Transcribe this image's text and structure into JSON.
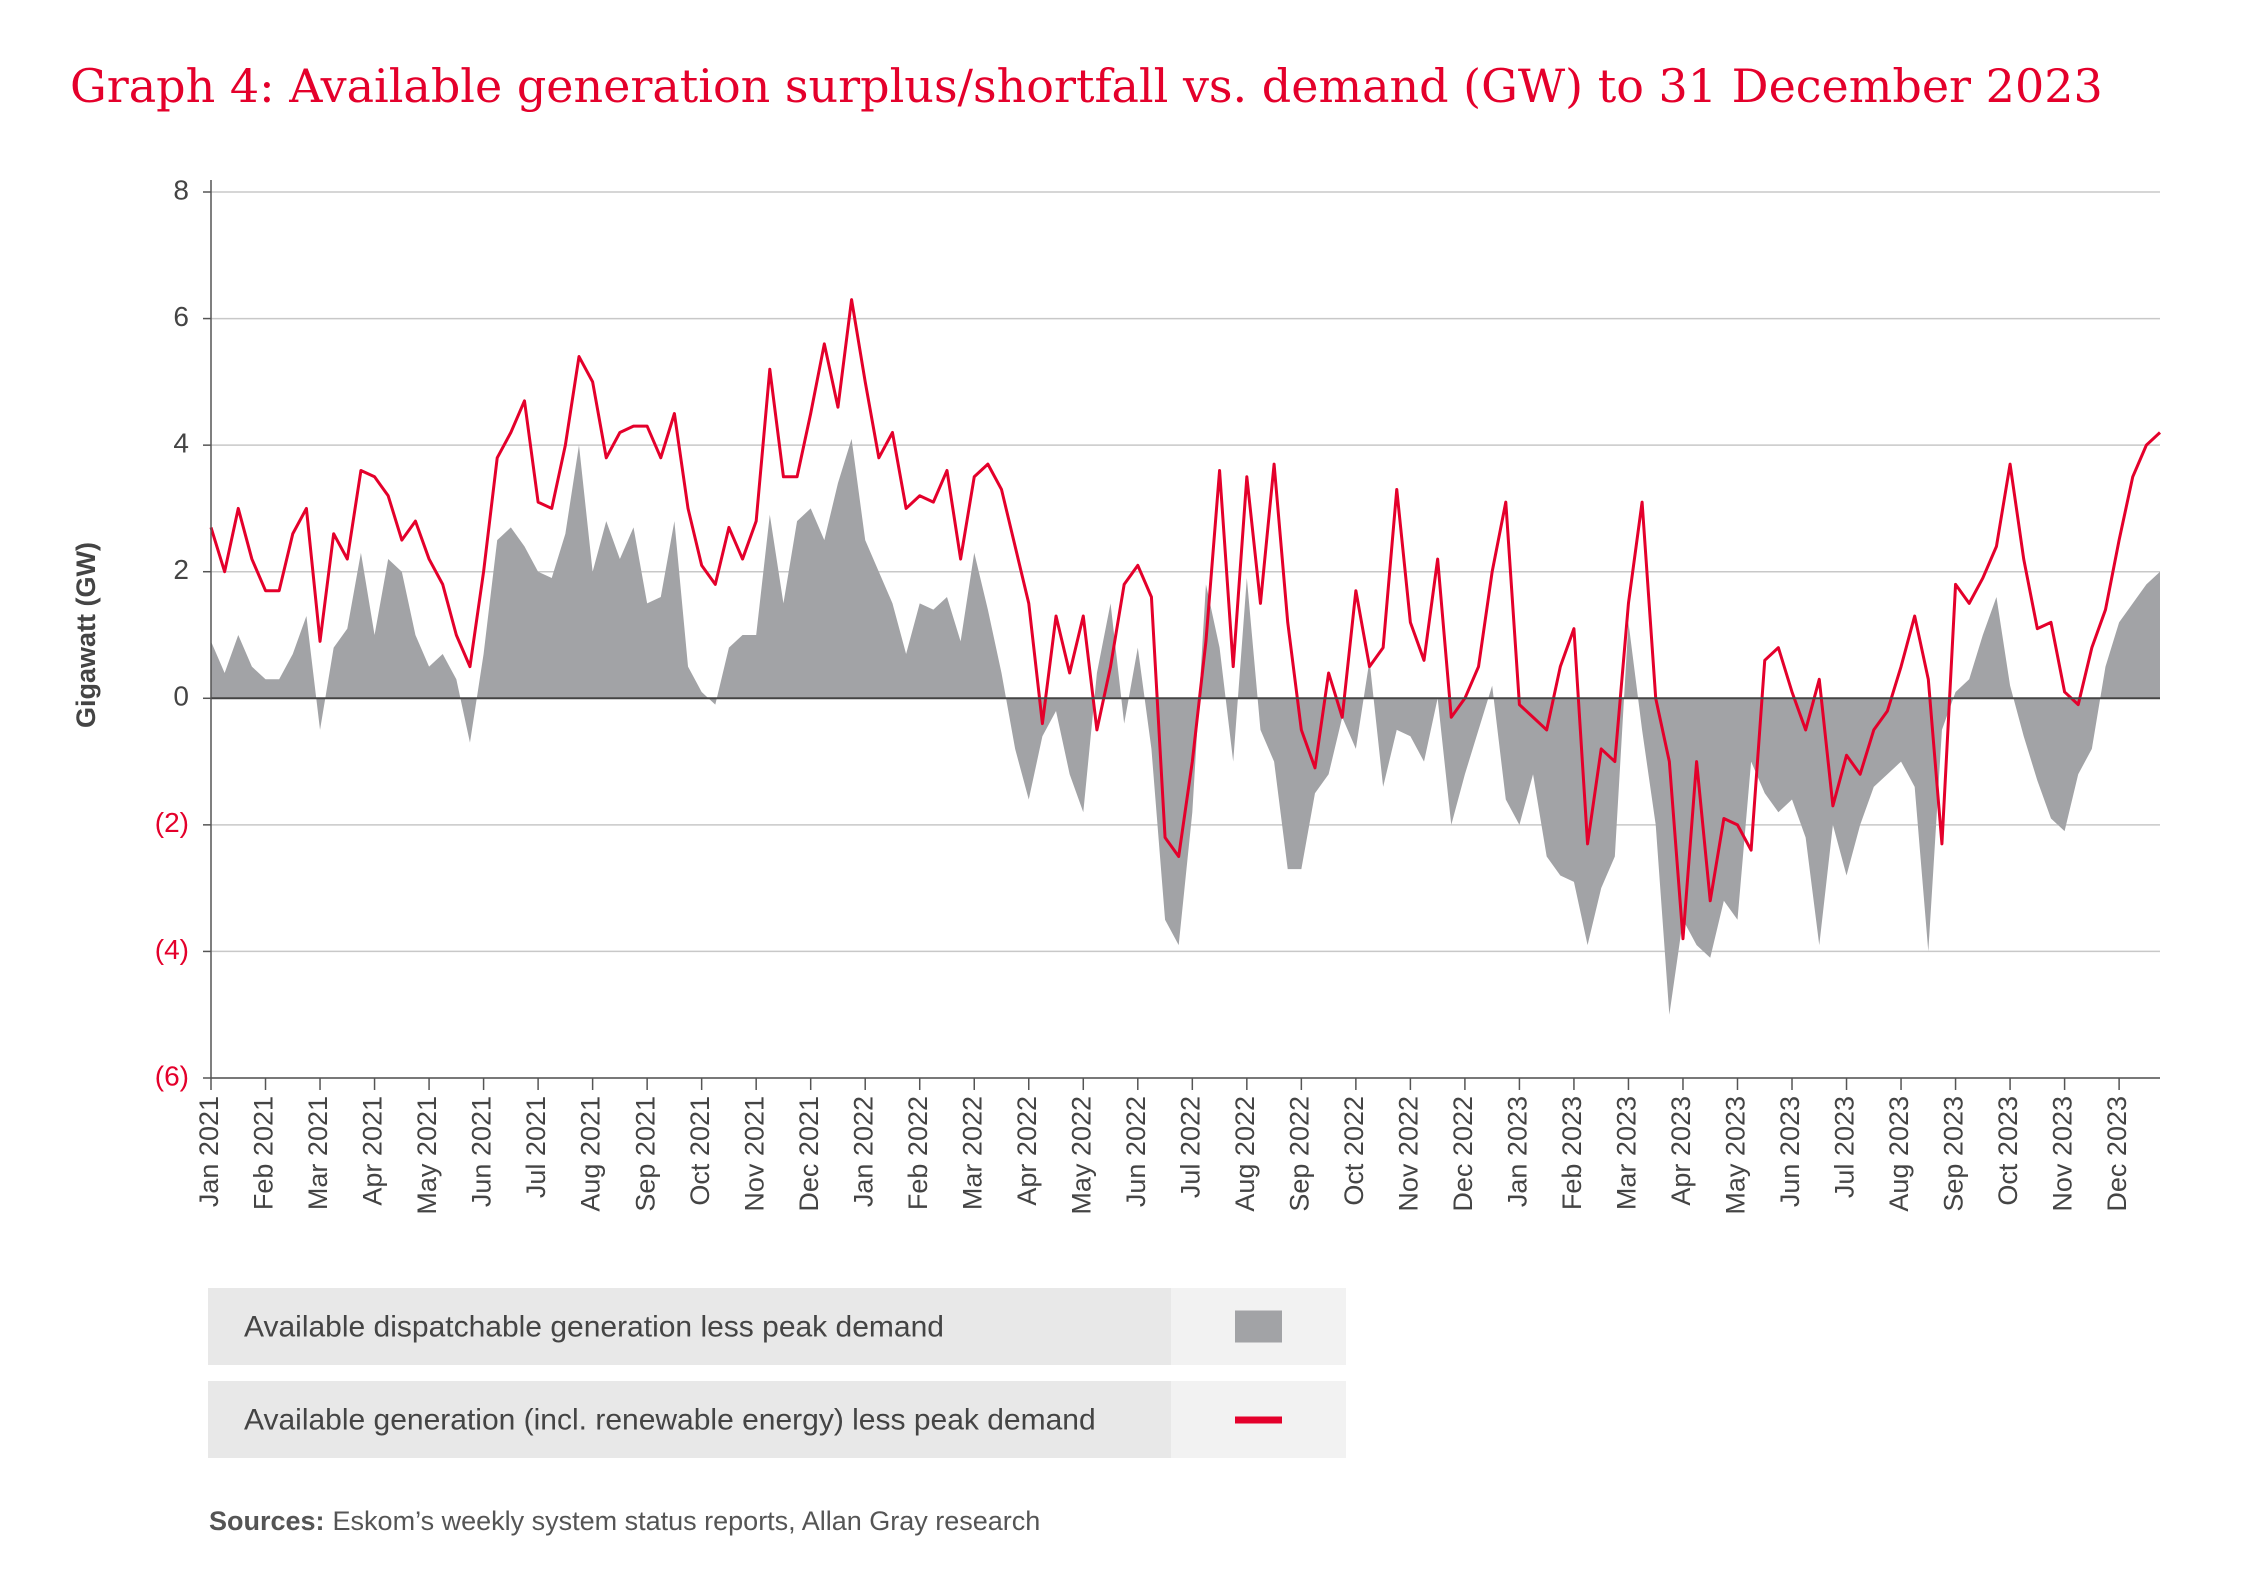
{
  "chart_data": {
    "type": "area-line",
    "title": "Graph 4: Available generation surplus/shortfall vs. demand (GW) to 31 December 2023",
    "y_label": "Gigawatt (GW)",
    "source_label": "Sources:",
    "source": "Eskom’s weekly system status reports, Allan Gray research",
    "ylim": [
      -6,
      8
    ],
    "yticks": [
      {
        "value": -6,
        "label": "(6)"
      },
      {
        "value": -4,
        "label": "(4)"
      },
      {
        "value": -2,
        "label": "(2)"
      },
      0,
      2,
      4,
      6,
      8
    ],
    "grid": true,
    "categories": [
      "Jan 2021",
      null,
      null,
      null,
      "Feb 2021",
      null,
      null,
      null,
      "Mar 2021",
      null,
      null,
      null,
      "Apr 2021",
      null,
      null,
      null,
      "May 2021",
      null,
      null,
      null,
      "Jun 2021",
      null,
      null,
      null,
      "Jul 2021",
      null,
      null,
      null,
      "Aug 2021",
      null,
      null,
      null,
      "Sep 2021",
      null,
      null,
      null,
      "Oct 2021",
      null,
      null,
      null,
      "Nov 2021",
      null,
      null,
      null,
      "Dec 2021",
      null,
      null,
      null,
      "Jan 2022",
      null,
      null,
      null,
      "Feb 2022",
      null,
      null,
      null,
      "Mar 2022",
      null,
      null,
      null,
      "Apr 2022",
      null,
      null,
      null,
      "May 2022",
      null,
      null,
      null,
      "Jun 2022",
      null,
      null,
      null,
      "Jul 2022",
      null,
      null,
      null,
      "Aug 2022",
      null,
      null,
      null,
      "Sep 2022",
      null,
      null,
      null,
      "Oct 2022",
      null,
      null,
      null,
      "Nov 2022",
      null,
      null,
      null,
      "Dec 2022",
      null,
      null,
      null,
      "Jan 2023",
      null,
      null,
      null,
      "Feb 2023",
      null,
      null,
      null,
      "Mar 2023",
      null,
      null,
      null,
      "Apr 2023",
      null,
      null,
      null,
      "May 2023",
      null,
      null,
      null,
      "Jun 2023",
      null,
      null,
      null,
      "Jul 2023",
      null,
      null,
      null,
      "Aug 2023",
      null,
      null,
      null,
      "Sep 2023",
      null,
      null,
      null,
      "Oct 2023",
      null,
      null,
      null,
      "Nov 2023",
      null,
      null,
      null,
      "Dec 2023",
      null,
      null,
      null
    ],
    "series": [
      {
        "name": "Available dispatchable generation less peak demand",
        "color": "#a2a3a6",
        "kind": "area",
        "values": [
          0.9,
          0.4,
          1.0,
          0.5,
          0.3,
          0.3,
          0.7,
          1.3,
          -0.5,
          0.8,
          1.1,
          2.3,
          1.0,
          2.2,
          2.0,
          1.0,
          0.5,
          0.7,
          0.3,
          -0.7,
          0.7,
          2.5,
          2.7,
          2.4,
          2.0,
          1.9,
          2.6,
          4.0,
          2.0,
          2.8,
          2.2,
          2.7,
          1.5,
          1.6,
          2.8,
          0.5,
          0.1,
          -0.1,
          0.8,
          1.0,
          1.0,
          2.9,
          1.5,
          2.8,
          3.0,
          2.5,
          3.4,
          4.1,
          2.5,
          2.0,
          1.5,
          0.7,
          1.5,
          1.4,
          1.6,
          0.9,
          2.3,
          1.4,
          0.4,
          -0.8,
          -1.6,
          -0.6,
          -0.2,
          -1.2,
          -1.8,
          0.4,
          1.5,
          -0.4,
          0.8,
          -0.8,
          -3.5,
          -3.9,
          -1.8,
          1.8,
          0.8,
          -1.0,
          1.9,
          -0.5,
          -1.0,
          -2.7,
          -2.7,
          -1.5,
          -1.2,
          -0.3,
          -0.8,
          0.6,
          -1.4,
          -0.5,
          -0.6,
          -1.0,
          0.0,
          -2.0,
          -1.2,
          -0.5,
          0.2,
          -1.6,
          -2.0,
          -1.2,
          -2.5,
          -2.8,
          -2.9,
          -3.9,
          -3.0,
          -2.5,
          1.2,
          -0.5,
          -2.0,
          -5.0,
          -3.5,
          -3.9,
          -4.1,
          -3.2,
          -3.5,
          -1.0,
          -1.5,
          -1.8,
          -1.6,
          -2.2,
          -3.9,
          -2.0,
          -2.8,
          -2.0,
          -1.4,
          -1.2,
          -1.0,
          -1.4,
          -4.0,
          -0.5,
          0.1,
          0.3,
          1.0,
          1.6,
          0.2,
          -0.6,
          -1.3,
          -1.9,
          -2.1,
          -1.2,
          -0.8,
          0.5,
          1.2,
          1.5,
          1.8,
          2.0
        ]
      },
      {
        "name": "Available generation (incl. renewable energy) less peak demand",
        "color": "#e4002b",
        "kind": "line",
        "values": [
          2.7,
          2.0,
          3.0,
          2.2,
          1.7,
          1.7,
          2.6,
          3.0,
          0.9,
          2.6,
          2.2,
          3.6,
          3.5,
          3.2,
          2.5,
          2.8,
          2.2,
          1.8,
          1.0,
          0.5,
          2.0,
          3.8,
          4.2,
          4.7,
          3.1,
          3.0,
          4.0,
          5.4,
          5.0,
          3.8,
          4.2,
          4.3,
          4.3,
          3.8,
          4.5,
          3.0,
          2.1,
          1.8,
          2.7,
          2.2,
          2.8,
          5.2,
          3.5,
          3.5,
          4.5,
          5.6,
          4.6,
          6.3,
          5.0,
          3.8,
          4.2,
          3.0,
          3.2,
          3.1,
          3.6,
          2.2,
          3.5,
          3.7,
          3.3,
          2.4,
          1.5,
          -0.4,
          1.3,
          0.4,
          1.3,
          -0.5,
          0.5,
          1.8,
          2.1,
          1.6,
          -2.2,
          -2.5,
          -1.0,
          0.9,
          3.6,
          0.5,
          3.5,
          1.5,
          3.7,
          1.2,
          -0.5,
          -1.1,
          0.4,
          -0.3,
          1.7,
          0.5,
          0.8,
          3.3,
          1.2,
          0.6,
          2.2,
          -0.3,
          0.0,
          0.5,
          2.0,
          3.1,
          -0.1,
          -0.3,
          -0.5,
          0.5,
          1.1,
          -2.3,
          -0.8,
          -1.0,
          1.5,
          3.1,
          0.0,
          -1.0,
          -3.8,
          -1.0,
          -3.2,
          -1.9,
          -2.0,
          -2.4,
          0.6,
          0.8,
          0.1,
          -0.5,
          0.3,
          -1.7,
          -0.9,
          -1.2,
          -0.5,
          -0.2,
          0.5,
          1.3,
          0.3,
          -2.3,
          1.8,
          1.5,
          1.9,
          2.4,
          3.7,
          2.2,
          1.1,
          1.2,
          0.1,
          -0.1,
          0.8,
          1.4,
          2.5,
          3.5,
          4.0,
          4.2
        ]
      }
    ]
  }
}
